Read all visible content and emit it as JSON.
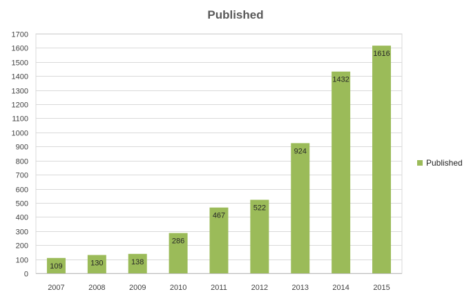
{
  "chart_data": {
    "type": "bar",
    "title": "Published",
    "categories": [
      "2007",
      "2008",
      "2009",
      "2010",
      "2011",
      "2012",
      "2013",
      "2014",
      "2015"
    ],
    "series": [
      {
        "name": "Published",
        "values": [
          109,
          130,
          138,
          286,
          467,
          522,
          924,
          1432,
          1616
        ]
      }
    ],
    "data_labels": [
      "109",
      "130",
      "138",
      "286",
      "467",
      "522",
      "924",
      "1432",
      "1616"
    ],
    "y_ticks": [
      "0",
      "100",
      "200",
      "300",
      "400",
      "500",
      "600",
      "700",
      "800",
      "900",
      "1000",
      "1100",
      "1200",
      "1300",
      "1400",
      "1500",
      "1600",
      "1700"
    ],
    "ylim": [
      0,
      1700
    ],
    "xlabel": "",
    "ylabel": "",
    "grid": true,
    "legend_position": "right",
    "colors": {
      "bar": "#9BBB59",
      "grid": "#D9D9D9",
      "axis": "#BFBFBF"
    }
  }
}
